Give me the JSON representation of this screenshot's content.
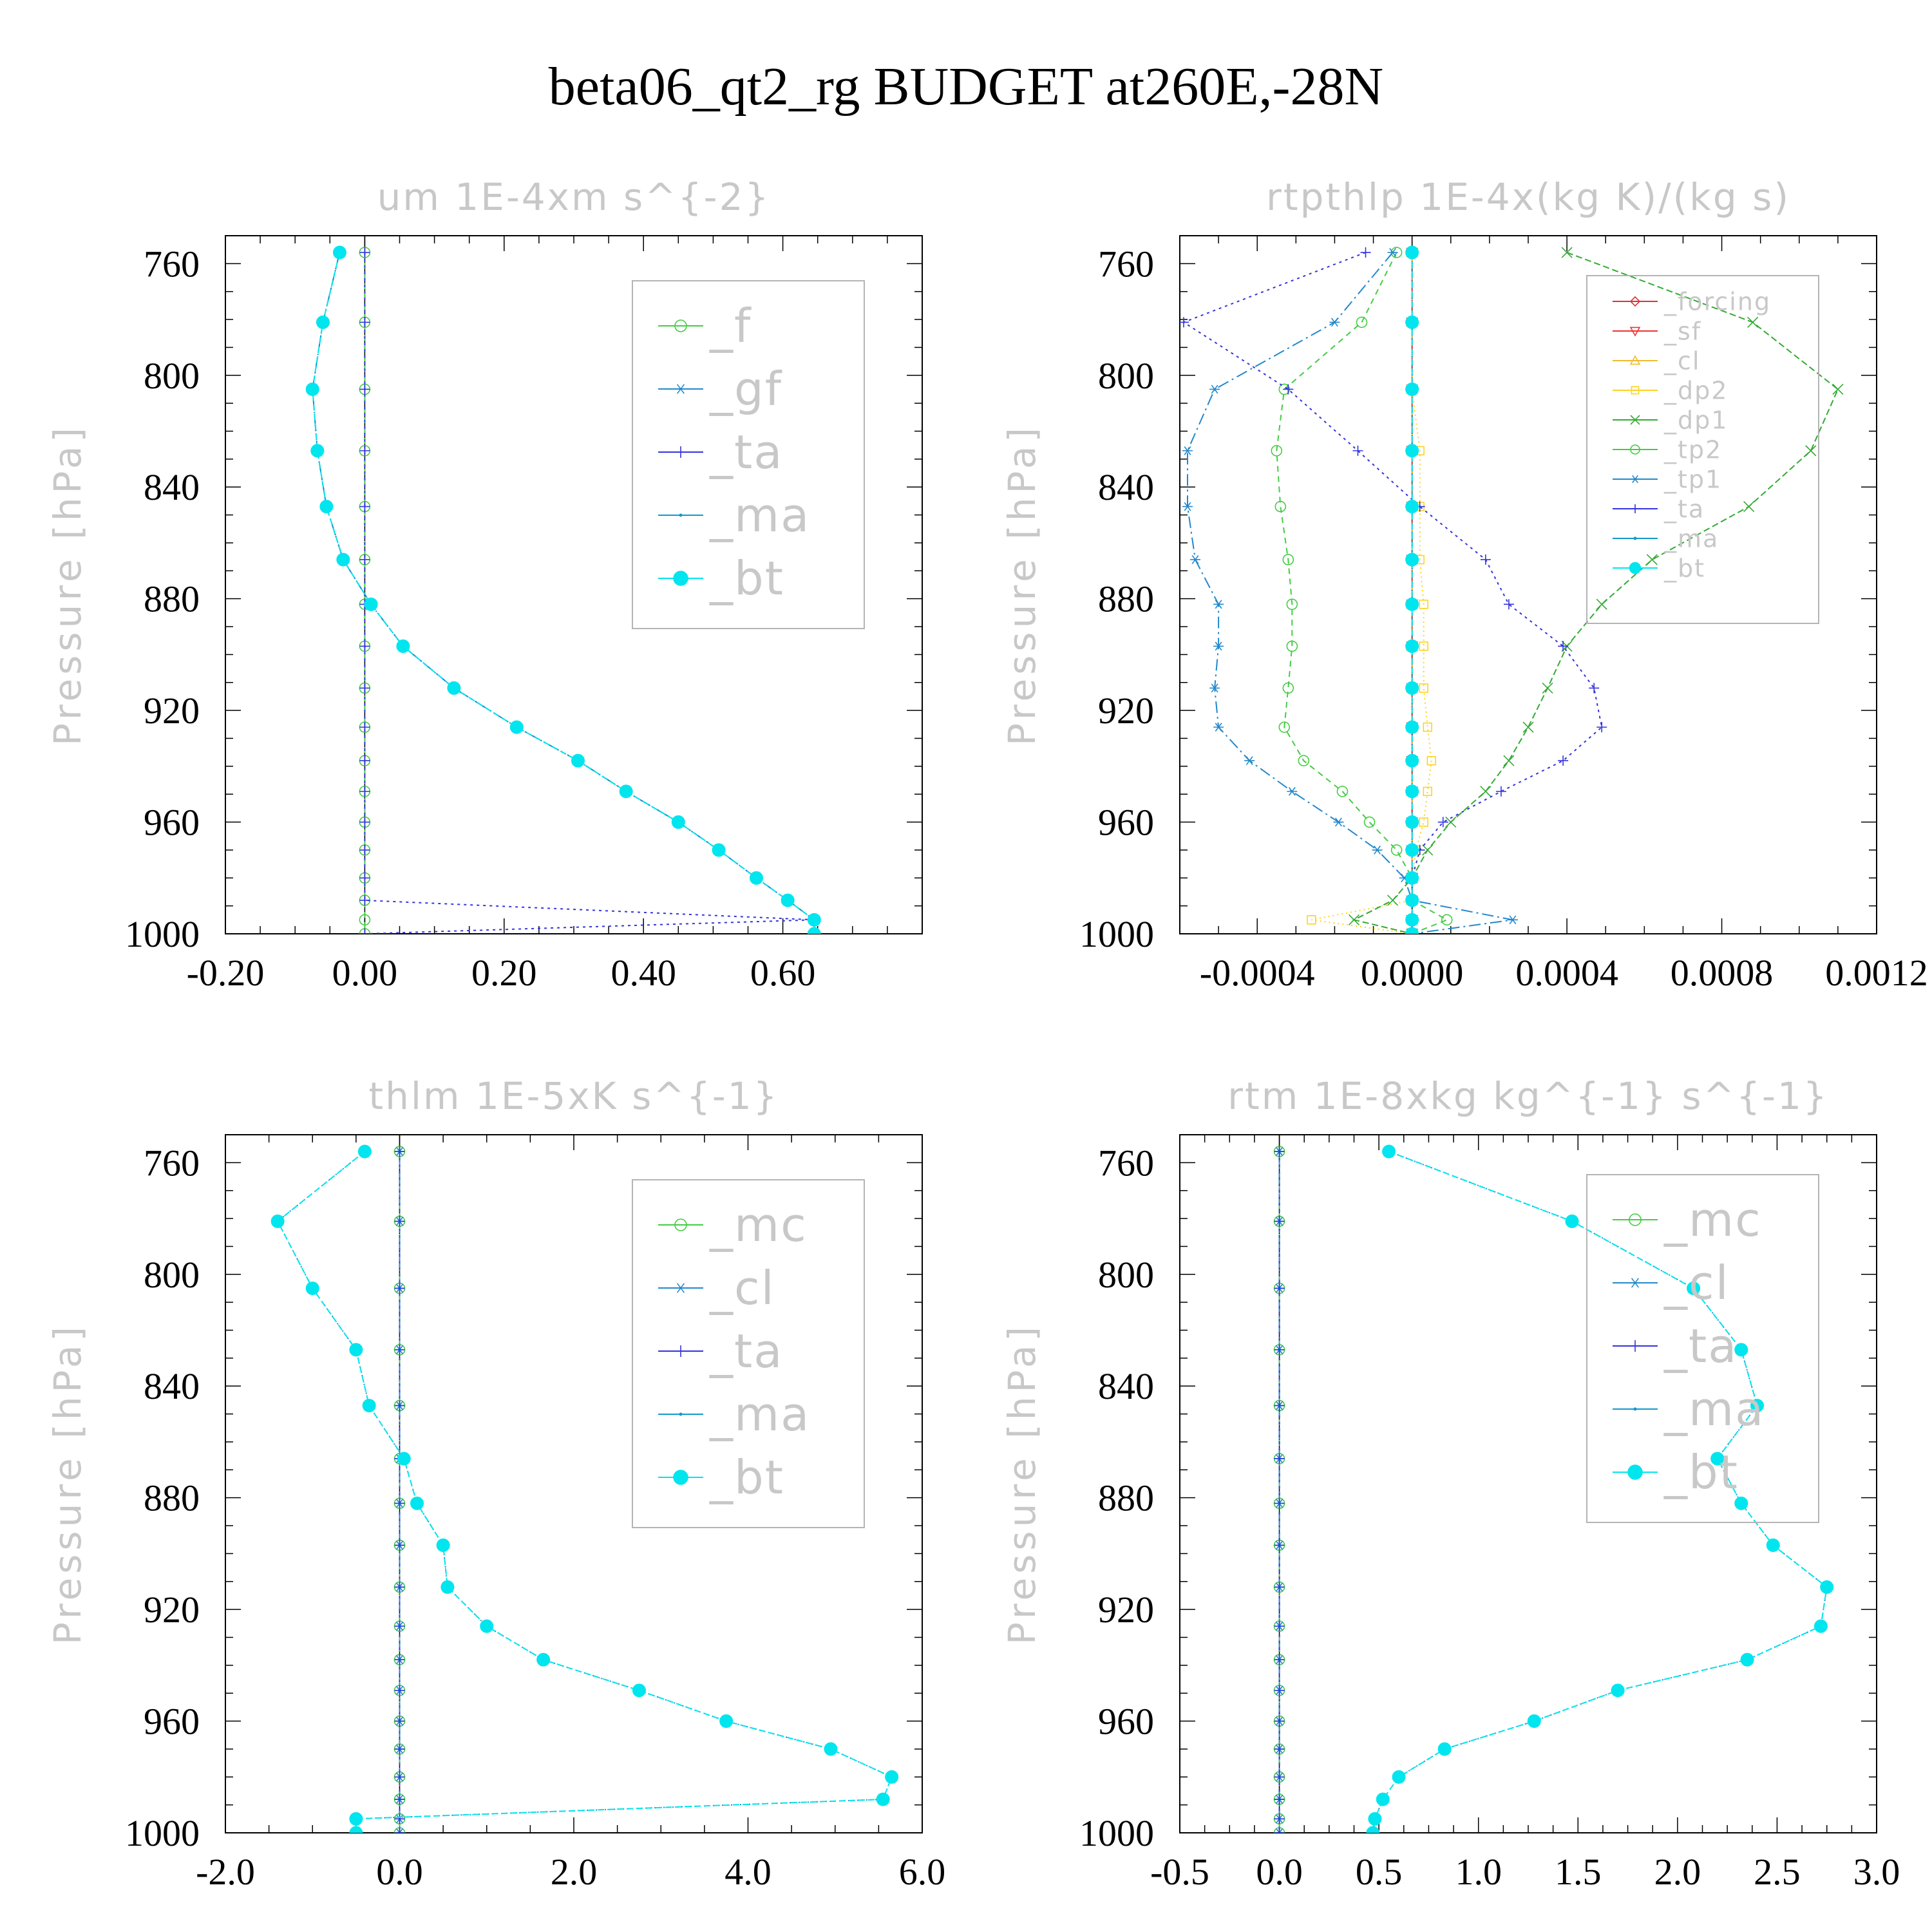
{
  "title": "beta06_qt2_rg  BUDGET at260E,-28N",
  "chart_data": [
    {
      "type": "line",
      "title": "um  1E-4xm s^{-2}",
      "ylabel": "Pressure [hPa]",
      "yticks": [
        "760",
        "800",
        "840",
        "880",
        "920",
        "960",
        "1000"
      ],
      "ylim": [
        1000,
        750
      ],
      "xticks": [
        "-0.20",
        "0.00",
        "0.20",
        "0.40",
        "0.60"
      ],
      "xlim": [
        -0.2,
        0.8
      ],
      "pressure": [
        756,
        781,
        805,
        827,
        847,
        866,
        882,
        897,
        912,
        926,
        938,
        949,
        960,
        970,
        980,
        988,
        995,
        1000
      ],
      "series": [
        {
          "name": "_f",
          "color": "#44cc44",
          "marker": "circle",
          "values": [
            0,
            0,
            0,
            0,
            0,
            0,
            0,
            0,
            0,
            0,
            0,
            0,
            0,
            0,
            0,
            0,
            0,
            0
          ]
        },
        {
          "name": "_gf",
          "color": "#2288cc",
          "marker": "star",
          "values": [
            -0.036,
            -0.06,
            -0.075,
            -0.068,
            -0.055,
            -0.031,
            0.009,
            0.055,
            0.128,
            0.218,
            0.306,
            0.375,
            0.45,
            0.508,
            0.562,
            0.607,
            0.645,
            0.645
          ]
        },
        {
          "name": "_ta",
          "color": "#3333dd",
          "marker": "plus",
          "values": [
            0,
            0,
            0,
            0,
            0,
            0,
            0,
            0,
            0,
            0,
            0,
            0,
            0,
            0,
            0,
            0,
            0.645,
            0
          ]
        },
        {
          "name": "_ma",
          "color": "#1199cc",
          "marker": "dot",
          "values": [
            -0.036,
            -0.06,
            -0.075,
            -0.068,
            -0.055,
            -0.031,
            0.009,
            0.055,
            0.128,
            0.218,
            0.306,
            0.375,
            0.45,
            0.508,
            0.562,
            0.607,
            0.645,
            0.645
          ]
        },
        {
          "name": "_bt",
          "color": "#00e5ee",
          "marker": "filled",
          "values": [
            -0.036,
            -0.06,
            -0.075,
            -0.068,
            -0.055,
            -0.031,
            0.009,
            0.055,
            0.128,
            0.218,
            0.306,
            0.375,
            0.45,
            0.508,
            0.562,
            0.607,
            0.645,
            0.645
          ]
        }
      ]
    },
    {
      "type": "line",
      "title": "rtpthlp  1E-4x(kg K)/(kg s)",
      "ylabel": "Pressure [hPa]",
      "yticks": [
        "760",
        "800",
        "840",
        "880",
        "920",
        "960",
        "1000"
      ],
      "ylim": [
        1000,
        750
      ],
      "xticks": [
        "-0.0004",
        "0.0000",
        "0.0004",
        "0.0008",
        "0.0012"
      ],
      "xlim": [
        -0.0006,
        0.0012
      ],
      "pressure": [
        756,
        781,
        805,
        827,
        847,
        866,
        882,
        897,
        912,
        926,
        938,
        949,
        960,
        970,
        980,
        988,
        995,
        1000
      ],
      "series": [
        {
          "name": "_forcing",
          "color": "#dd3333",
          "marker": "diamond",
          "values": [
            0,
            0,
            0,
            0,
            0,
            0,
            0,
            0,
            0,
            0,
            0,
            0,
            0,
            0,
            0,
            0,
            0,
            0
          ]
        },
        {
          "name": "_sf",
          "color": "#ee3333",
          "marker": "tri-down",
          "values": [
            0,
            0,
            0,
            0,
            0,
            0,
            0,
            0,
            0,
            0,
            0,
            0,
            0,
            0,
            0,
            0,
            0,
            0
          ]
        },
        {
          "name": "_cl",
          "color": "#eebb33",
          "marker": "tri-up",
          "values": [
            0,
            0,
            0,
            0,
            0,
            0,
            0,
            0,
            0,
            0,
            0,
            0,
            0,
            0,
            0,
            0,
            0,
            0
          ]
        },
        {
          "name": "_dp2",
          "color": "#ffd21e",
          "marker": "square",
          "values": [
            0,
            0,
            0,
            2e-05,
            2e-05,
            2e-05,
            3e-05,
            3e-05,
            3e-05,
            4e-05,
            5e-05,
            4e-05,
            3e-05,
            1e-05,
            0,
            0,
            -0.00026,
            0
          ]
        },
        {
          "name": "_dp1",
          "color": "#33aa33",
          "marker": "x",
          "values": [
            0.0004,
            0.00088,
            0.0011,
            0.00103,
            0.00087,
            0.00062,
            0.00049,
            0.0004,
            0.00035,
            0.0003,
            0.00025,
            0.00019,
            0.0001,
            4e-05,
            0,
            -5e-05,
            -0.00015,
            0
          ]
        },
        {
          "name": "_tp2",
          "color": "#44cc44",
          "marker": "circle",
          "values": [
            -4e-05,
            -0.00013,
            -0.00033,
            -0.00035,
            -0.00034,
            -0.00032,
            -0.00031,
            -0.00031,
            -0.00032,
            -0.00033,
            -0.00028,
            -0.00018,
            -0.00011,
            -4e-05,
            0,
            0,
            9e-05,
            0
          ]
        },
        {
          "name": "_tp1",
          "color": "#2288cc",
          "marker": "star",
          "values": [
            -5e-05,
            -0.0002,
            -0.00051,
            -0.00058,
            -0.00058,
            -0.00056,
            -0.0005,
            -0.0005,
            -0.00051,
            -0.0005,
            -0.00042,
            -0.00031,
            -0.00019,
            -9e-05,
            -2e-05,
            0,
            0.00026,
            0
          ]
        },
        {
          "name": "_ta",
          "color": "#3333dd",
          "marker": "plus",
          "values": [
            -0.00012,
            -0.00059,
            -0.00032,
            -0.00014,
            2e-05,
            0.00019,
            0.00025,
            0.00039,
            0.00047,
            0.00049,
            0.00039,
            0.00023,
            8e-05,
            2e-05,
            0,
            0,
            0,
            0
          ]
        },
        {
          "name": "_ma",
          "color": "#1199cc",
          "marker": "dot",
          "values": [
            0,
            0,
            0,
            0,
            0,
            0,
            0,
            0,
            0,
            0,
            0,
            0,
            0,
            0,
            0,
            0,
            0,
            0
          ]
        },
        {
          "name": "_bt",
          "color": "#00e5ee",
          "marker": "filled",
          "values": [
            0,
            0,
            0,
            0,
            0,
            0,
            0,
            0,
            0,
            0,
            0,
            0,
            0,
            0,
            0,
            0,
            0,
            0
          ]
        }
      ]
    },
    {
      "type": "line",
      "title": "thlm  1E-5xK s^{-1}",
      "ylabel": "Pressure [hPa]",
      "yticks": [
        "760",
        "800",
        "840",
        "880",
        "920",
        "960",
        "1000"
      ],
      "ylim": [
        1000,
        750
      ],
      "xticks": [
        "-2.0",
        "0.0",
        "2.0",
        "4.0",
        "6.0"
      ],
      "xlim": [
        -2.0,
        6.0
      ],
      "pressure": [
        756,
        781,
        805,
        827,
        847,
        866,
        882,
        897,
        912,
        926,
        938,
        949,
        960,
        970,
        980,
        988,
        995,
        1000
      ],
      "series": [
        {
          "name": "_mc",
          "color": "#44cc44",
          "marker": "circle",
          "values": [
            0,
            0,
            0,
            0,
            0,
            0,
            0,
            0,
            0,
            0,
            0,
            0,
            0,
            0,
            0,
            0,
            0,
            0
          ]
        },
        {
          "name": "_cl",
          "color": "#2288cc",
          "marker": "star",
          "values": [
            0,
            0,
            0,
            0,
            0,
            0,
            0,
            0,
            0,
            0,
            0,
            0,
            0,
            0,
            0,
            0,
            0,
            0
          ]
        },
        {
          "name": "_ta",
          "color": "#3333dd",
          "marker": "plus",
          "values": [
            0,
            0,
            0,
            0,
            0,
            0,
            0,
            0,
            0,
            0,
            0,
            0,
            0,
            0,
            0,
            0,
            0,
            0
          ]
        },
        {
          "name": "_ma",
          "color": "#1199cc",
          "marker": "dot",
          "values": [
            -0.4,
            -1.4,
            -1.0,
            -0.5,
            -0.35,
            0.05,
            0.2,
            0.5,
            0.55,
            1.0,
            1.65,
            2.75,
            3.75,
            4.95,
            5.65,
            5.55,
            -0.5,
            -0.5
          ]
        },
        {
          "name": "_bt",
          "color": "#00e5ee",
          "marker": "filled",
          "values": [
            -0.4,
            -1.4,
            -1.0,
            -0.5,
            -0.35,
            0.05,
            0.2,
            0.5,
            0.55,
            1.0,
            1.65,
            2.75,
            3.75,
            4.95,
            5.65,
            5.55,
            -0.5,
            -0.5
          ]
        }
      ]
    },
    {
      "type": "line",
      "title": "rtm  1E-8xkg kg^{-1} s^{-1}",
      "ylabel": "Pressure [hPa]",
      "yticks": [
        "760",
        "800",
        "840",
        "880",
        "920",
        "960",
        "1000"
      ],
      "ylim": [
        1000,
        750
      ],
      "xticks": [
        "-0.5",
        "0.0",
        "0.5",
        "1.0",
        "1.5",
        "2.0",
        "2.5",
        "3.0"
      ],
      "xlim": [
        -0.5,
        3.0
      ],
      "pressure": [
        756,
        781,
        805,
        827,
        847,
        866,
        882,
        897,
        912,
        926,
        938,
        949,
        960,
        970,
        980,
        988,
        995,
        1000
      ],
      "series": [
        {
          "name": "_mc",
          "color": "#44cc44",
          "marker": "circle",
          "values": [
            0,
            0,
            0,
            0,
            0,
            0,
            0,
            0,
            0,
            0,
            0,
            0,
            0,
            0,
            0,
            0,
            0,
            0
          ]
        },
        {
          "name": "_cl",
          "color": "#2288cc",
          "marker": "star",
          "values": [
            0,
            0,
            0,
            0,
            0,
            0,
            0,
            0,
            0,
            0,
            0,
            0,
            0,
            0,
            0,
            0,
            0,
            0
          ]
        },
        {
          "name": "_ta",
          "color": "#3333dd",
          "marker": "plus",
          "values": [
            0,
            0,
            0,
            0,
            0,
            0,
            0,
            0,
            0,
            0,
            0,
            0,
            0,
            0,
            0,
            0,
            0,
            0
          ]
        },
        {
          "name": "_ma",
          "color": "#1199cc",
          "marker": "dot",
          "values": [
            0.55,
            1.47,
            2.08,
            2.32,
            2.4,
            2.2,
            2.32,
            2.48,
            2.75,
            2.72,
            2.35,
            1.7,
            1.28,
            0.83,
            0.6,
            0.52,
            0.48,
            0.47
          ]
        },
        {
          "name": "_bt",
          "color": "#00e5ee",
          "marker": "filled",
          "values": [
            0.55,
            1.47,
            2.08,
            2.32,
            2.4,
            2.2,
            2.32,
            2.48,
            2.75,
            2.72,
            2.35,
            1.7,
            1.28,
            0.83,
            0.6,
            0.52,
            0.48,
            0.47
          ]
        }
      ]
    }
  ]
}
